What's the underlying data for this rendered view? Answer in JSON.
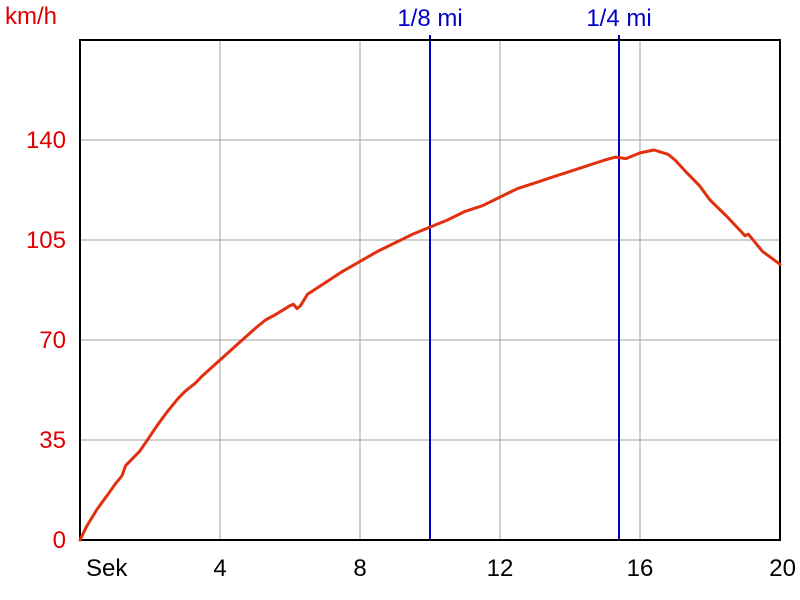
{
  "chart_data": {
    "type": "line",
    "title": "",
    "ylabel": "km/h",
    "xlabel": "Sek",
    "xlim": [
      0,
      20
    ],
    "ylim": [
      0,
      175
    ],
    "x_ticks": [
      {
        "value": 0,
        "label": "Sek"
      },
      {
        "value": 4,
        "label": "4"
      },
      {
        "value": 8,
        "label": "8"
      },
      {
        "value": 12,
        "label": "12"
      },
      {
        "value": 16,
        "label": "16"
      },
      {
        "value": 20,
        "label": "20"
      }
    ],
    "y_ticks": [
      {
        "value": 0,
        "label": "0"
      },
      {
        "value": 35,
        "label": "35"
      },
      {
        "value": 70,
        "label": "70"
      },
      {
        "value": 105,
        "label": "105"
      },
      {
        "value": 140,
        "label": "140"
      }
    ],
    "x_grid": [
      0,
      4,
      8,
      12,
      16,
      20
    ],
    "y_grid": [
      0,
      35,
      70,
      105,
      140,
      175
    ],
    "grid": true,
    "markers": [
      {
        "label": "1/8 mi",
        "x": 10.0
      },
      {
        "label": "1/4 mi",
        "x": 15.4
      }
    ],
    "colors": {
      "series": "#e03010",
      "marker": "#0000cc",
      "grid": "#a0a0a0",
      "axis": "#000000",
      "ytext": "#e00000",
      "xtext": "#000000"
    },
    "series": [
      {
        "values": [
          [
            0,
            0
          ],
          [
            0.2,
            5
          ],
          [
            0.5,
            11
          ],
          [
            0.8,
            16
          ],
          [
            1.0,
            19.5
          ],
          [
            1.2,
            22.5
          ],
          [
            1.3,
            26
          ],
          [
            1.5,
            28.5
          ],
          [
            1.7,
            31
          ],
          [
            1.9,
            34.5
          ],
          [
            2.2,
            40
          ],
          [
            2.5,
            45
          ],
          [
            2.8,
            49.5
          ],
          [
            3.0,
            52
          ],
          [
            3.3,
            55
          ],
          [
            3.5,
            57.5
          ],
          [
            4.0,
            63
          ],
          [
            4.5,
            68.5
          ],
          [
            5.0,
            74
          ],
          [
            5.3,
            77
          ],
          [
            5.6,
            79
          ],
          [
            6.0,
            82
          ],
          [
            6.1,
            82.5
          ],
          [
            6.2,
            81
          ],
          [
            6.3,
            82
          ],
          [
            6.5,
            86
          ],
          [
            7.0,
            90
          ],
          [
            7.5,
            94
          ],
          [
            8.0,
            97.5
          ],
          [
            8.5,
            101
          ],
          [
            9.0,
            104
          ],
          [
            9.5,
            107
          ],
          [
            10.0,
            109.5
          ],
          [
            10.5,
            112
          ],
          [
            11.0,
            115
          ],
          [
            11.5,
            117
          ],
          [
            12.0,
            120
          ],
          [
            12.5,
            123
          ],
          [
            13.0,
            125
          ],
          [
            13.5,
            127
          ],
          [
            14.0,
            129
          ],
          [
            14.5,
            131
          ],
          [
            15.0,
            133
          ],
          [
            15.3,
            134
          ],
          [
            15.6,
            133.5
          ],
          [
            16.0,
            135.5
          ],
          [
            16.4,
            136.5
          ],
          [
            16.8,
            135
          ],
          [
            17.0,
            133
          ],
          [
            17.3,
            129
          ],
          [
            17.7,
            124
          ],
          [
            18.0,
            119
          ],
          [
            18.5,
            113
          ],
          [
            19.0,
            106.5
          ],
          [
            19.1,
            107
          ],
          [
            19.3,
            104
          ],
          [
            19.5,
            101
          ],
          [
            20.0,
            96.5
          ]
        ]
      }
    ]
  }
}
